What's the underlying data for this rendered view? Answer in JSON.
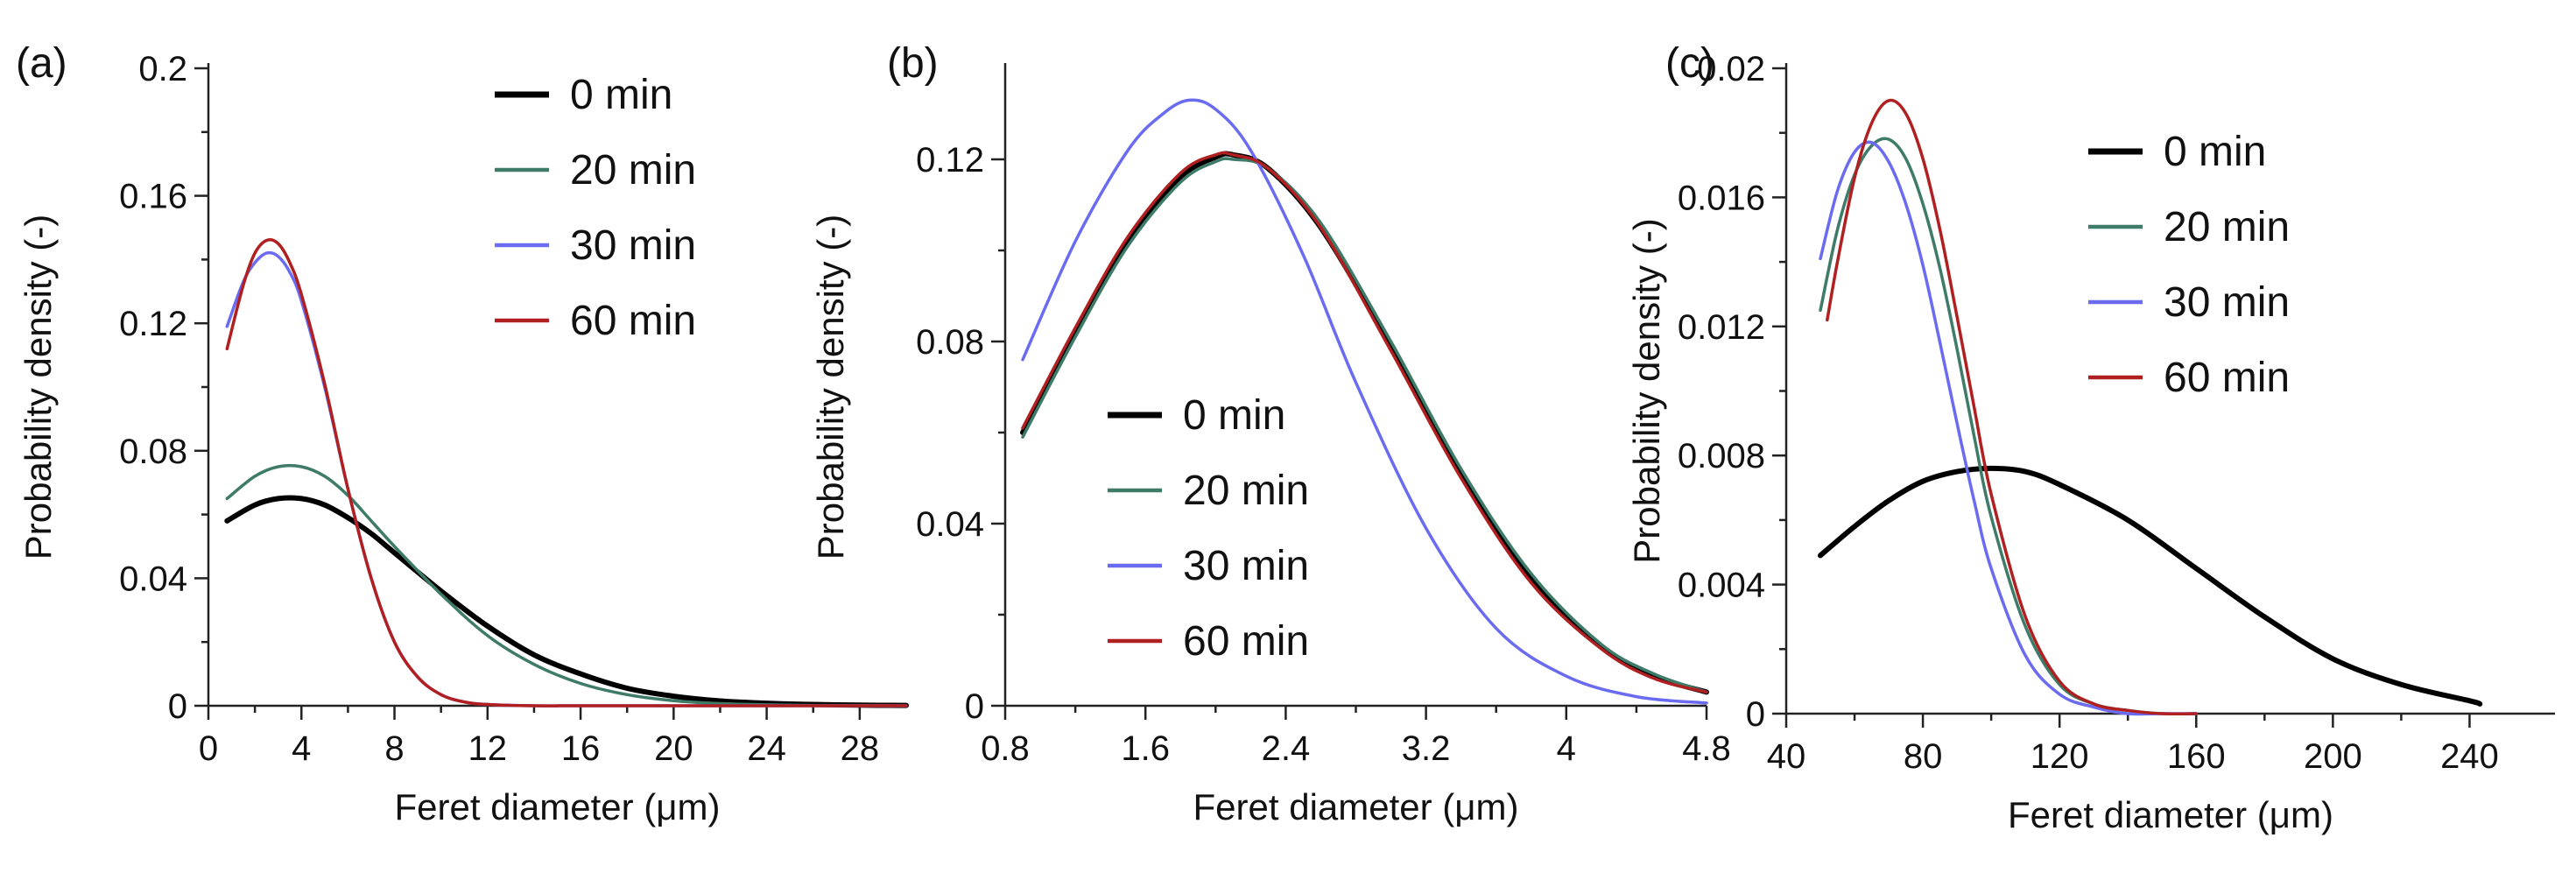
{
  "chart_data": [
    {
      "panel": "(a)",
      "type": "line",
      "xlabel": "Feret diameter (μm)",
      "ylabel": "Probability density (-)",
      "xlim": [
        0,
        30
      ],
      "ylim": [
        0,
        0.2
      ],
      "xticks": [
        "0",
        "4",
        "8",
        "12",
        "16",
        "20",
        "24",
        "28"
      ],
      "yticks": [
        "0",
        "0.04",
        "0.08",
        "0.12",
        "0.16",
        "0.2"
      ],
      "legend": "top-right",
      "series": [
        {
          "name": "0 min",
          "color": "#000000",
          "width": 6,
          "x": [
            0.8,
            2,
            3,
            4,
            5,
            6,
            7,
            8,
            10,
            12,
            14,
            16,
            18,
            20,
            22,
            24,
            26,
            28,
            30
          ],
          "y": [
            0.058,
            0.063,
            0.065,
            0.065,
            0.063,
            0.059,
            0.054,
            0.048,
            0.036,
            0.025,
            0.016,
            0.01,
            0.0055,
            0.003,
            0.0015,
            0.0008,
            0.0004,
            0.0002,
            0.0001
          ]
        },
        {
          "name": "20 min",
          "color": "#3e7b68",
          "width": 3.5,
          "x": [
            0.8,
            2,
            3,
            4,
            5,
            6,
            7,
            8,
            10,
            12,
            14,
            16,
            18,
            20,
            22,
            24,
            26,
            28,
            30
          ],
          "y": [
            0.065,
            0.072,
            0.075,
            0.075,
            0.072,
            0.066,
            0.058,
            0.05,
            0.035,
            0.022,
            0.013,
            0.007,
            0.0035,
            0.0016,
            0.0007,
            0.0003,
            0.0001,
            0.0001,
            0.0
          ]
        },
        {
          "name": "30 min",
          "color": "#6a6bf0",
          "width": 3.5,
          "x": [
            0.8,
            1.5,
            2,
            2.5,
            3,
            3.5,
            4,
            5,
            6,
            7,
            8,
            9,
            10,
            11,
            12,
            14,
            16,
            20,
            30
          ],
          "y": [
            0.119,
            0.133,
            0.139,
            0.142,
            0.141,
            0.136,
            0.127,
            0.1,
            0.068,
            0.04,
            0.02,
            0.009,
            0.0035,
            0.0012,
            0.0004,
            0.0,
            0.0,
            0.0,
            0.0
          ]
        },
        {
          "name": "60 min",
          "color": "#b02020",
          "width": 3.5,
          "x": [
            0.8,
            1.5,
            2,
            2.5,
            3,
            3.5,
            4,
            5,
            6,
            7,
            8,
            9,
            10,
            11,
            12,
            14,
            16,
            20,
            30
          ],
          "y": [
            0.112,
            0.132,
            0.142,
            0.146,
            0.145,
            0.139,
            0.129,
            0.101,
            0.068,
            0.04,
            0.02,
            0.009,
            0.0035,
            0.0012,
            0.0004,
            0.0,
            0.0,
            0.0,
            0.0
          ]
        }
      ]
    },
    {
      "panel": "(b)",
      "type": "line",
      "xlabel": "Feret diameter (μm)",
      "ylabel": "Probability density (-)",
      "xlim": [
        0.8,
        4.8
      ],
      "ylim": [
        0,
        0.14
      ],
      "xticks": [
        "0.8",
        "1.6",
        "2.4",
        "3.2",
        "4",
        "4.8"
      ],
      "yticks": [
        "0",
        "0.04",
        "0.08",
        "0.12"
      ],
      "legend": "lower-left",
      "series": [
        {
          "name": "0 min",
          "color": "#000000",
          "width": 6,
          "x": [
            0.9,
            1.2,
            1.5,
            1.8,
            2.0,
            2.1,
            2.3,
            2.6,
            3.0,
            3.4,
            3.8,
            4.2,
            4.5,
            4.8
          ],
          "y": [
            0.06,
            0.082,
            0.102,
            0.116,
            0.1205,
            0.121,
            0.118,
            0.105,
            0.079,
            0.051,
            0.028,
            0.013,
            0.0065,
            0.003
          ]
        },
        {
          "name": "20 min",
          "color": "#3e7b68",
          "width": 3.5,
          "x": [
            0.9,
            1.2,
            1.5,
            1.8,
            2.0,
            2.1,
            2.3,
            2.6,
            3.0,
            3.4,
            3.8,
            4.2,
            4.5,
            4.8
          ],
          "y": [
            0.059,
            0.081,
            0.101,
            0.115,
            0.1195,
            0.12,
            0.118,
            0.106,
            0.08,
            0.052,
            0.029,
            0.0135,
            0.007,
            0.003
          ]
        },
        {
          "name": "30 min",
          "color": "#6a6bf0",
          "width": 3.5,
          "x": [
            0.9,
            1.2,
            1.5,
            1.7,
            1.85,
            2.0,
            2.2,
            2.5,
            2.8,
            3.2,
            3.6,
            4.0,
            4.4,
            4.8
          ],
          "y": [
            0.076,
            0.102,
            0.122,
            0.13,
            0.133,
            0.131,
            0.122,
            0.099,
            0.071,
            0.039,
            0.017,
            0.0065,
            0.002,
            0.0006
          ]
        },
        {
          "name": "60 min",
          "color": "#b02020",
          "width": 3.5,
          "x": [
            0.9,
            1.2,
            1.5,
            1.8,
            2.0,
            2.1,
            2.3,
            2.6,
            3.0,
            3.4,
            3.8,
            4.2,
            4.5,
            4.8
          ],
          "y": [
            0.061,
            0.083,
            0.103,
            0.117,
            0.121,
            0.121,
            0.118,
            0.105,
            0.078,
            0.05,
            0.027,
            0.0125,
            0.006,
            0.003
          ]
        }
      ]
    },
    {
      "panel": "(c)",
      "type": "line",
      "xlabel": "Feret diameter (μm)",
      "ylabel": "Probability density (-)",
      "xlim": [
        40,
        265
      ],
      "ylim": [
        0,
        0.02
      ],
      "xticks": [
        "40",
        "80",
        "120",
        "160",
        "200",
        "240"
      ],
      "yticks": [
        "0",
        "0.004",
        "0.008",
        "0.012",
        "0.016",
        "0.02"
      ],
      "legend": "top-right",
      "series": [
        {
          "name": "0 min",
          "color": "#000000",
          "width": 6,
          "x": [
            50,
            60,
            70,
            80,
            90,
            100,
            110,
            120,
            140,
            160,
            180,
            200,
            220,
            240,
            243
          ],
          "y": [
            0.0049,
            0.0058,
            0.0066,
            0.0072,
            0.0075,
            0.0076,
            0.0075,
            0.0071,
            0.006,
            0.0045,
            0.003,
            0.0017,
            0.0009,
            0.0004,
            0.0003
          ]
        },
        {
          "name": "20 min",
          "color": "#3e7b68",
          "width": 3.5,
          "x": [
            50,
            55,
            60,
            65,
            70,
            75,
            80,
            85,
            90,
            95,
            100,
            110,
            120,
            130,
            140,
            150,
            160
          ],
          "y": [
            0.0125,
            0.015,
            0.0167,
            0.0176,
            0.0178,
            0.0172,
            0.0158,
            0.0138,
            0.0113,
            0.0086,
            0.0061,
            0.0027,
            0.0009,
            0.0003,
            0.0001,
            0.0,
            0.0
          ]
        },
        {
          "name": "30 min",
          "color": "#6a6bf0",
          "width": 3.5,
          "x": [
            50,
            55,
            60,
            65,
            70,
            75,
            80,
            85,
            90,
            95,
            100,
            110,
            120,
            130,
            140,
            150,
            160
          ],
          "y": [
            0.0141,
            0.0162,
            0.0174,
            0.0177,
            0.0171,
            0.0158,
            0.0139,
            0.0115,
            0.009,
            0.0066,
            0.0045,
            0.0018,
            0.0006,
            0.0002,
            0.0,
            0.0,
            0.0
          ]
        },
        {
          "name": "60 min",
          "color": "#b02020",
          "width": 3.5,
          "x": [
            52,
            55,
            60,
            65,
            70,
            75,
            80,
            85,
            90,
            95,
            100,
            110,
            120,
            130,
            140,
            150,
            160
          ],
          "y": [
            0.0122,
            0.014,
            0.0166,
            0.0183,
            0.019,
            0.0186,
            0.0172,
            0.015,
            0.0123,
            0.0095,
            0.0068,
            0.003,
            0.001,
            0.0003,
            0.0001,
            0.0,
            0.0
          ]
        }
      ]
    }
  ]
}
